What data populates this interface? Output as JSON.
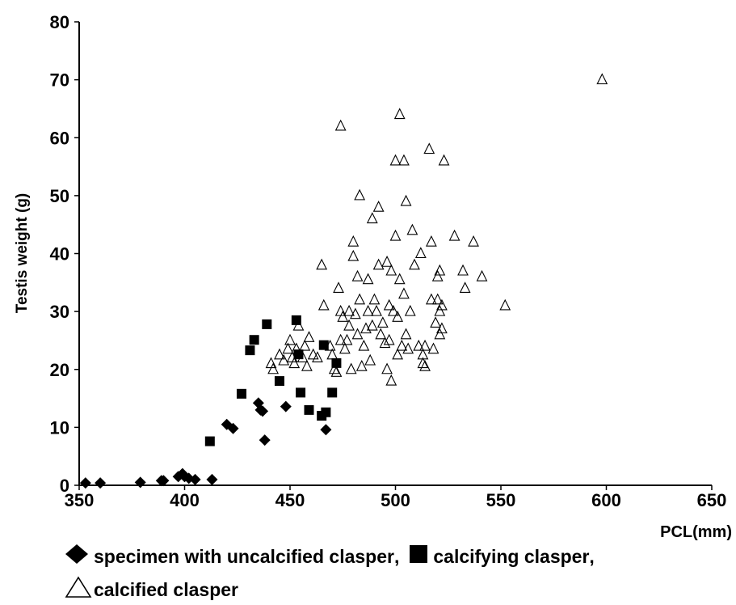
{
  "chart_data": {
    "type": "scatter",
    "title": "",
    "xlabel": "PCL(mm)",
    "ylabel": "Testis weight (g)",
    "xlim": [
      350,
      650
    ],
    "ylim": [
      0,
      80
    ],
    "x_ticks": [
      "350",
      "400",
      "450",
      "500",
      "550",
      "600",
      "650"
    ],
    "y_ticks": [
      "0",
      "10",
      "20",
      "30",
      "40",
      "50",
      "60",
      "70",
      "80"
    ],
    "grid": false,
    "legend_position": "bottom",
    "legend_separator": ",",
    "series": [
      {
        "name": "specimen with uncalcified clasper",
        "marker": "diamond-filled",
        "color": "#000000",
        "points": [
          [
            353,
            0.4
          ],
          [
            360,
            0.4
          ],
          [
            379,
            0.5
          ],
          [
            389,
            0.8
          ],
          [
            390,
            0.8
          ],
          [
            397,
            1.5
          ],
          [
            399,
            2.0
          ],
          [
            400,
            1.5
          ],
          [
            402,
            1.2
          ],
          [
            405,
            1.0
          ],
          [
            413,
            1.0
          ],
          [
            420,
            10.5
          ],
          [
            423,
            9.8
          ],
          [
            435,
            14.2
          ],
          [
            436,
            13.0
          ],
          [
            437,
            12.8
          ],
          [
            438,
            7.8
          ],
          [
            448,
            13.6
          ],
          [
            467,
            9.6
          ]
        ]
      },
      {
        "name": "calcifying clasper",
        "marker": "square-filled",
        "color": "#000000",
        "points": [
          [
            412,
            7.6
          ],
          [
            427,
            15.8
          ],
          [
            431,
            23.3
          ],
          [
            433,
            25.1
          ],
          [
            439,
            27.8
          ],
          [
            445,
            18.0
          ],
          [
            453,
            28.5
          ],
          [
            454,
            22.6
          ],
          [
            455,
            16.0
          ],
          [
            459,
            13.0
          ],
          [
            465,
            12.0
          ],
          [
            466,
            24.2
          ],
          [
            467,
            12.6
          ],
          [
            470,
            16.0
          ],
          [
            472,
            21.1
          ]
        ]
      },
      {
        "name": "calcified clasper",
        "marker": "triangle-open",
        "color": "#000000",
        "points": [
          [
            441,
            21
          ],
          [
            442,
            20
          ],
          [
            445,
            22.5
          ],
          [
            447,
            21.5
          ],
          [
            449,
            23.5
          ],
          [
            450,
            25
          ],
          [
            451,
            22
          ],
          [
            452,
            21
          ],
          [
            453,
            23.5
          ],
          [
            454,
            27.5
          ],
          [
            456,
            22
          ],
          [
            457,
            24
          ],
          [
            458,
            20.5
          ],
          [
            459,
            25.5
          ],
          [
            461,
            22.5
          ],
          [
            463,
            22
          ],
          [
            465,
            38
          ],
          [
            466,
            31
          ],
          [
            469,
            24
          ],
          [
            470,
            22.5
          ],
          [
            471,
            20
          ],
          [
            472,
            19.5
          ],
          [
            473,
            34
          ],
          [
            474,
            25
          ],
          [
            474,
            30
          ],
          [
            474,
            62
          ],
          [
            475,
            29
          ],
          [
            476,
            23.5
          ],
          [
            477,
            25
          ],
          [
            478,
            27.5
          ],
          [
            478,
            30
          ],
          [
            479,
            20
          ],
          [
            480,
            39.5
          ],
          [
            480,
            42
          ],
          [
            481,
            29.5
          ],
          [
            482,
            26
          ],
          [
            482,
            36
          ],
          [
            483,
            32
          ],
          [
            483,
            50
          ],
          [
            484,
            20.5
          ],
          [
            485,
            24
          ],
          [
            486,
            27
          ],
          [
            487,
            30
          ],
          [
            487,
            35.5
          ],
          [
            488,
            21.5
          ],
          [
            489,
            27.5
          ],
          [
            489,
            46
          ],
          [
            490,
            32
          ],
          [
            491,
            30
          ],
          [
            492,
            38
          ],
          [
            492,
            48
          ],
          [
            493,
            26
          ],
          [
            494,
            28
          ],
          [
            495,
            24.5
          ],
          [
            496,
            20
          ],
          [
            496,
            38.5
          ],
          [
            497,
            25
          ],
          [
            497,
            31
          ],
          [
            498,
            18
          ],
          [
            498,
            37
          ],
          [
            499,
            30
          ],
          [
            500,
            43
          ],
          [
            500,
            56
          ],
          [
            501,
            22.5
          ],
          [
            501,
            29
          ],
          [
            502,
            35.5
          ],
          [
            502,
            64
          ],
          [
            503,
            24
          ],
          [
            504,
            33
          ],
          [
            504,
            56
          ],
          [
            505,
            26
          ],
          [
            505,
            49
          ],
          [
            506,
            23.5
          ],
          [
            507,
            30
          ],
          [
            508,
            44
          ],
          [
            509,
            38
          ],
          [
            511,
            24
          ],
          [
            512,
            40
          ],
          [
            513,
            21
          ],
          [
            513,
            22.5
          ],
          [
            514,
            20.5
          ],
          [
            514,
            24
          ],
          [
            516,
            58
          ],
          [
            517,
            32
          ],
          [
            517,
            42
          ],
          [
            518,
            23.5
          ],
          [
            519,
            28
          ],
          [
            520,
            32
          ],
          [
            520,
            36
          ],
          [
            521,
            26
          ],
          [
            521,
            30
          ],
          [
            521,
            37
          ],
          [
            522,
            27
          ],
          [
            522,
            31
          ],
          [
            523,
            56
          ],
          [
            528,
            43
          ],
          [
            532,
            37
          ],
          [
            533,
            34
          ],
          [
            537,
            42
          ],
          [
            541,
            36
          ],
          [
            552,
            31
          ],
          [
            598,
            70
          ]
        ]
      }
    ]
  }
}
